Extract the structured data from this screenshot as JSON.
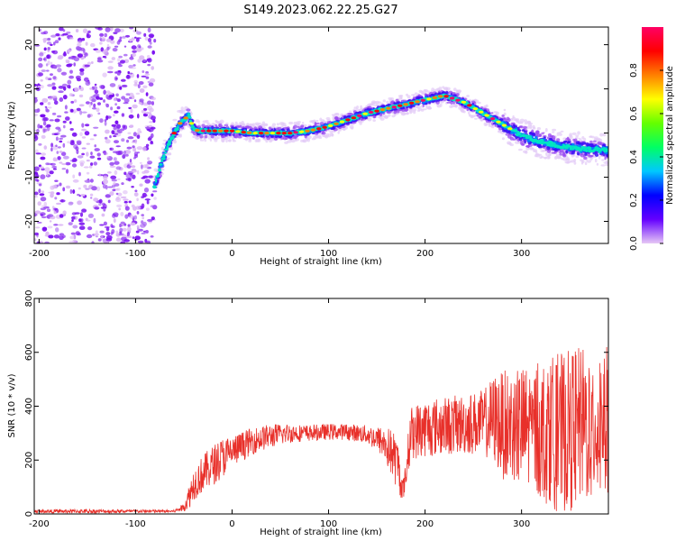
{
  "figure_title": "S149.2023.062.22.25.G27",
  "chart_data": [
    {
      "type": "heatmap",
      "xlabel": "Height of straight line (km)",
      "ylabel": "Frequency (Hz)",
      "xlim": [
        -205,
        390
      ],
      "ylim": [
        -25,
        24
      ],
      "xticks": [
        -200,
        -100,
        0,
        100,
        200,
        300
      ],
      "yticks": [
        -20,
        -10,
        0,
        10,
        20
      ],
      "colorbar": {
        "label": "Normalized spectral amplitude",
        "range": [
          0,
          1.0
        ],
        "ticks": [
          "0.0",
          "0.2",
          "0.4",
          "0.6",
          "0.8"
        ],
        "colormap": [
          "#e6c8f5",
          "#6400ff",
          "#0000ff",
          "#00c8ff",
          "#00ff64",
          "#64ff00",
          "#ffff00",
          "#ff8000",
          "#ff0000",
          "#ff0064"
        ]
      },
      "noise_region": {
        "x_range": [
          -205,
          -80
        ],
        "description_level": "scattered low amplitude"
      },
      "ridge": {
        "x": [
          -80,
          -75,
          -70,
          -65,
          -60,
          -55,
          -50,
          -45,
          -40,
          -35,
          -30,
          -20,
          0,
          20,
          40,
          60,
          80,
          100,
          120,
          140,
          160,
          180,
          200,
          220,
          240,
          260,
          280,
          300,
          320,
          340,
          360,
          390
        ],
        "freq": [
          -12,
          -8,
          -5,
          -2,
          0,
          2,
          3,
          4,
          1,
          0.5,
          0.5,
          0.5,
          0.5,
          0,
          0,
          0,
          0.5,
          1.5,
          3,
          4.5,
          5.5,
          6.5,
          7.5,
          8.5,
          7,
          4.5,
          2,
          -0.5,
          -2,
          -3,
          -3.5,
          -4
        ]
      }
    },
    {
      "type": "line",
      "xlabel": "Height of straight line (km)",
      "ylabel": "SNR (10 * v/v)",
      "xlim": [
        -205,
        390
      ],
      "ylim": [
        0,
        800
      ],
      "xticks": [
        -200,
        -100,
        0,
        100,
        200,
        300
      ],
      "yticks": [
        0,
        200,
        400,
        600,
        800
      ],
      "color": "#e8302a",
      "envelope": {
        "x": [
          -205,
          -150,
          -100,
          -60,
          -50,
          -45,
          -40,
          -30,
          -20,
          -10,
          0,
          20,
          40,
          60,
          80,
          100,
          120,
          140,
          155,
          165,
          172,
          175,
          178,
          185,
          200,
          230,
          260,
          272,
          280,
          300,
          320,
          340,
          360,
          390
        ],
        "mean": [
          10,
          10,
          10,
          10,
          25,
          60,
          110,
          150,
          180,
          210,
          230,
          270,
          290,
          300,
          300,
          305,
          305,
          295,
          270,
          230,
          180,
          110,
          90,
          300,
          320,
          330,
          340,
          350,
          330,
          320,
          310,
          300,
          320,
          350
        ],
        "spread": [
          6,
          8,
          6,
          5,
          15,
          45,
          60,
          70,
          75,
          75,
          60,
          50,
          45,
          35,
          30,
          30,
          30,
          35,
          55,
          90,
          100,
          50,
          40,
          100,
          110,
          110,
          120,
          170,
          200,
          230,
          260,
          300,
          300,
          280
        ]
      }
    }
  ]
}
